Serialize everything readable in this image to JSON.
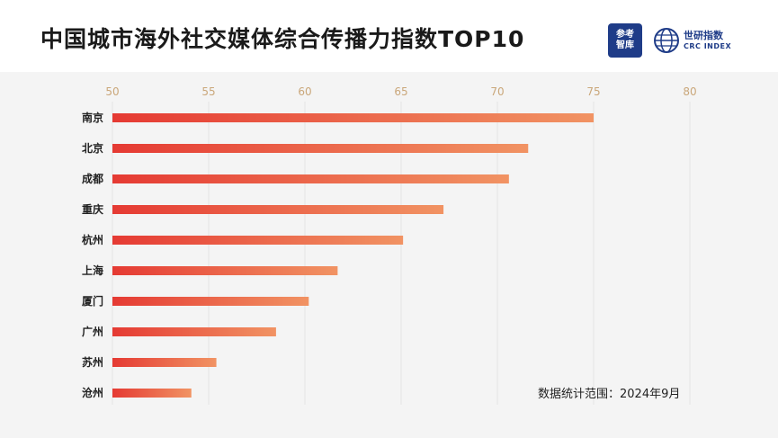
{
  "title": "中国城市海外社交媒体综合传播力指数TOP10",
  "logos": {
    "left_line1": "参考",
    "left_line2": "智库",
    "right_cn": "世研指数",
    "right_en": "CRC INDEX"
  },
  "note": "数据统计范围：2024年9月",
  "colors": {
    "bar_start": "#e53a33",
    "bar_end": "#f19363",
    "tick_text": "#caa77a",
    "grid": "#e3e3e3",
    "brand_blue": "#1f3c88"
  },
  "chart_data": {
    "type": "bar",
    "orientation": "horizontal",
    "categories": [
      "南京",
      "北京",
      "成都",
      "重庆",
      "杭州",
      "上海",
      "厦门",
      "广州",
      "苏州",
      "沧州"
    ],
    "values": [
      75.0,
      71.6,
      70.6,
      67.2,
      65.1,
      61.7,
      60.2,
      58.5,
      55.4,
      54.1
    ],
    "xlim": [
      50,
      80
    ],
    "xticks": [
      50,
      55,
      60,
      65,
      70,
      75,
      80
    ],
    "xticks_position": "top",
    "grid": true,
    "legend": "none"
  }
}
